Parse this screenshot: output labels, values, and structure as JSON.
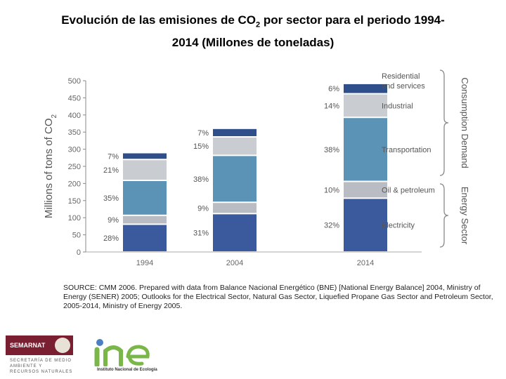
{
  "title_line1": "Evolución de las emisiones de CO",
  "title_sub": "2",
  "title_line1_end": " por sector para el periodo 1994-",
  "title_line2": "2014 (Millones de toneladas)",
  "chart_data": {
    "type": "bar",
    "stacked": true,
    "ylabel": "Millions of tons of CO",
    "ylabel_sub": "2",
    "ylim": [
      0,
      500
    ],
    "yticks": [
      "0",
      "50",
      "100",
      "150",
      "200",
      "250",
      "300",
      "350",
      "400",
      "450",
      "500"
    ],
    "categories": [
      "1994",
      "2004",
      "2014"
    ],
    "totals": [
      290,
      361,
      492
    ],
    "series": [
      {
        "name": "Electricity",
        "color": "#3b5a9e",
        "percents": [
          "28%",
          "31%",
          "32%"
        ],
        "values": [
          81,
          112,
          157
        ]
      },
      {
        "name": "Oil & petroleum",
        "color": "#b9bdc3",
        "percents": [
          "9%",
          "9%",
          "10%"
        ],
        "values": [
          26,
          33,
          49
        ]
      },
      {
        "name": "Transportation",
        "color": "#5b93b7",
        "percents": [
          "35%",
          "38%",
          "38%"
        ],
        "values": [
          102,
          137,
          187
        ]
      },
      {
        "name": "Industrial",
        "color": "#c9ccd1",
        "percents": [
          "21%",
          "15%",
          "14%"
        ],
        "values": [
          61,
          54,
          69
        ]
      },
      {
        "name": "Residential and services",
        "color": "#2f4f8a",
        "percents": [
          "7%",
          "7%",
          "6%"
        ],
        "values": [
          20,
          25,
          30
        ]
      }
    ],
    "legend_labels": [
      "Residential",
      "and services",
      "Industrial",
      "Transportation",
      "Oil & petroleum",
      "Electricity"
    ],
    "group_labels": [
      "Consumption Demand",
      "Energy Sector"
    ]
  },
  "source": "SOURCE: CMM 2006. Prepared with data from Balance Nacional Energético (BNE) [National Energy Balance] 2004, Ministry of Energy (SENER) 2005; Outlooks for the Electrical Sector, Natural Gas Sector, Liquefied Propane Gas Sector and Petroleum Sector, 2005-2014, Ministry of Energy 2005.",
  "logos": {
    "semarnat": "SEMARNAT",
    "semarnat_sub": "SECRETARÍA DE MEDIO AMBIENTE Y RECURSOS NATURALES",
    "ine": "ine",
    "ine_sub": "Instituto Nacional de Ecología"
  }
}
